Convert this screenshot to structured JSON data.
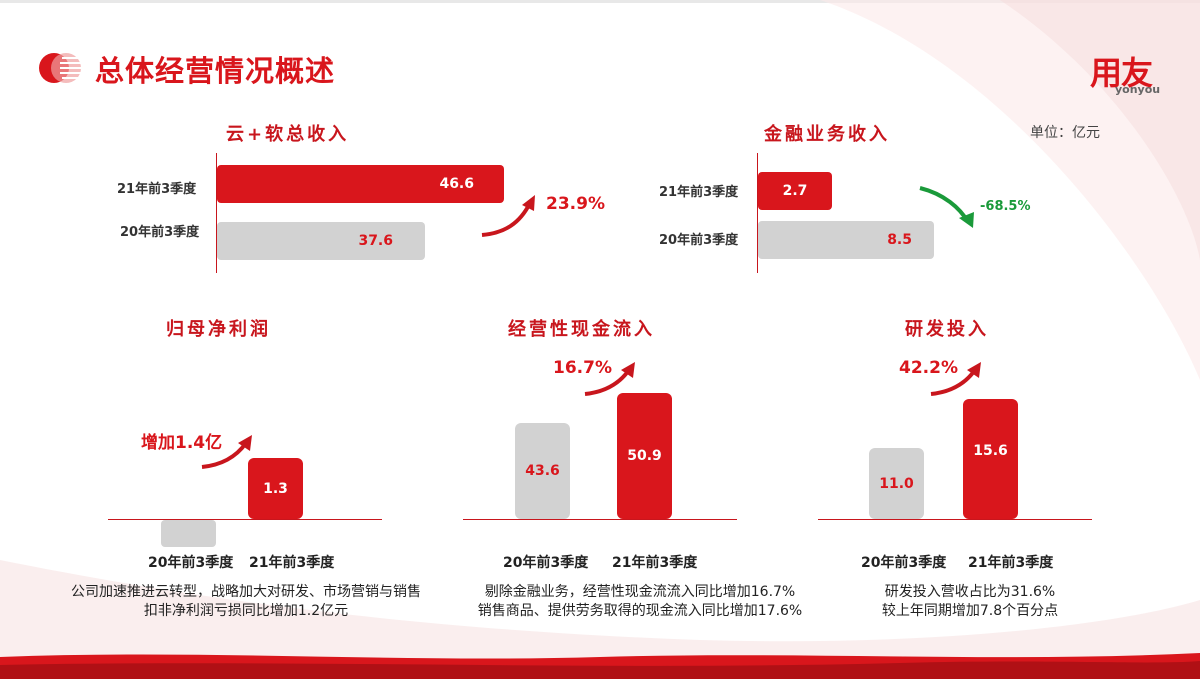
{
  "header": {
    "title": "总体经营情况概述",
    "logo_text": "用友",
    "logo_sub": "yonyou",
    "unit": "单位：亿元"
  },
  "colors": {
    "accent": "#d9161c",
    "gray": "#d2d2d2",
    "green": "#1a9a3a"
  },
  "cloud_revenue": {
    "title": "云+软总收入",
    "rows": [
      {
        "label": "21年前3季度",
        "value": "46.6"
      },
      {
        "label": "20年前3季度",
        "value": "37.6"
      }
    ],
    "growth": "23.9%"
  },
  "finance_revenue": {
    "title": "金融业务收入",
    "rows": [
      {
        "label": "21年前3季度",
        "value": "2.7"
      },
      {
        "label": "20年前3季度",
        "value": "8.5"
      }
    ],
    "growth": "-68.5%"
  },
  "net_profit": {
    "title": "归母净利润",
    "growth": "增加1.4亿",
    "bar_2021_label": "1.3",
    "x_labels": [
      "20年前3季度",
      "21年前3季度"
    ],
    "note_lines": [
      "公司加速推进云转型，战略加大对研发、市场营销与销售",
      "扣非净利润亏损同比增加1.2亿元"
    ]
  },
  "cash_flow": {
    "title": "经营性现金流入",
    "growth": "16.7%",
    "values": [
      "43.6",
      "50.9"
    ],
    "x_labels": [
      "20年前3季度",
      "21年前3季度"
    ],
    "note_lines": [
      "剔除金融业务，经营性现金流流入同比增加16.7%",
      "销售商品、提供劳务取得的现金流入同比增加17.6%"
    ]
  },
  "rd": {
    "title": "研发投入",
    "growth": "42.2%",
    "values": [
      "11.0",
      "15.6"
    ],
    "x_labels": [
      "20年前3季度",
      "21年前3季度"
    ],
    "note_lines": [
      "研发投入营收占比为31.6%",
      "较上年同期增加7.8个百分点"
    ]
  }
}
